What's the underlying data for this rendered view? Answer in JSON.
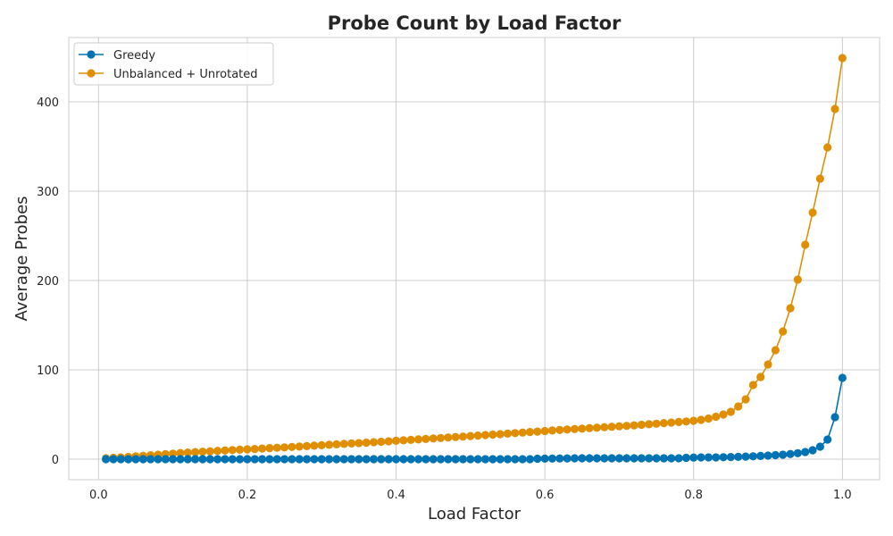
{
  "chart_data": {
    "type": "line",
    "title": "Probe Count by Load Factor",
    "xlabel": "Load Factor",
    "ylabel": "Average Probes",
    "xlim": [
      -0.04,
      1.05
    ],
    "ylim": [
      -23,
      472
    ],
    "xticks": [
      0.0,
      0.2,
      0.4,
      0.6,
      0.8,
      1.0
    ],
    "xtick_labels": [
      "0.0",
      "0.2",
      "0.4",
      "0.6",
      "0.8",
      "1.0"
    ],
    "yticks": [
      0,
      100,
      200,
      300,
      400
    ],
    "ytick_labels": [
      "0",
      "100",
      "200",
      "300",
      "400"
    ],
    "grid": true,
    "legend_position": "top-left",
    "x": [
      0.01,
      0.02,
      0.03,
      0.04,
      0.05,
      0.06,
      0.07,
      0.08,
      0.09,
      0.1,
      0.11,
      0.12,
      0.13,
      0.14,
      0.15,
      0.16,
      0.17,
      0.18,
      0.19,
      0.2,
      0.21,
      0.22,
      0.23,
      0.24,
      0.25,
      0.26,
      0.27,
      0.28,
      0.29,
      0.3,
      0.31,
      0.32,
      0.33,
      0.34,
      0.35,
      0.36,
      0.37,
      0.38,
      0.39,
      0.4,
      0.41,
      0.42,
      0.43,
      0.44,
      0.45,
      0.46,
      0.47,
      0.48,
      0.49,
      0.5,
      0.51,
      0.52,
      0.53,
      0.54,
      0.55,
      0.56,
      0.57,
      0.58,
      0.59,
      0.6,
      0.61,
      0.62,
      0.63,
      0.64,
      0.65,
      0.66,
      0.67,
      0.68,
      0.69,
      0.7,
      0.71,
      0.72,
      0.73,
      0.74,
      0.75,
      0.76,
      0.77,
      0.78,
      0.79,
      0.8,
      0.81,
      0.82,
      0.83,
      0.84,
      0.85,
      0.86,
      0.87,
      0.88,
      0.89,
      0.9,
      0.91,
      0.92,
      0.93,
      0.94,
      0.95,
      0.96,
      0.97,
      0.98,
      0.99,
      1.0
    ],
    "series": [
      {
        "name": "Greedy",
        "color": "#0173b2",
        "values": [
          0.0,
          0.0,
          0.0,
          0.0,
          0.0,
          0.0,
          0.0,
          0.0,
          0.0,
          0.0,
          0.0,
          0.0,
          0.0,
          0.0,
          0.0,
          0.0,
          0.0,
          0.0,
          0.0,
          0.0,
          0.0,
          0.0,
          0.0,
          0.0,
          0.0,
          0.0,
          0.0,
          0.0,
          0.0,
          0.0,
          0.0,
          0.0,
          0.0,
          0.0,
          0.0,
          0.0,
          0.0,
          0.0,
          0.0,
          0.0,
          0.0,
          0.0,
          0.0,
          0.0,
          0.0,
          0.0,
          0.0,
          0.0,
          0.0,
          0.0,
          0.0,
          0.0,
          0.0,
          0.0,
          0.0,
          0.0,
          0.0,
          0.0,
          0.5,
          0.6,
          0.7,
          0.8,
          0.9,
          1.0,
          1.0,
          1.0,
          1.0,
          1.0,
          1.0,
          1.0,
          1.0,
          1.0,
          1.0,
          1.0,
          1.0,
          1.0,
          1.0,
          1.0,
          1.5,
          1.8,
          2.0,
          2.0,
          2.0,
          2.2,
          2.4,
          2.6,
          2.9,
          3.2,
          3.6,
          4.0,
          4.5,
          5.0,
          5.8,
          6.7,
          8.0,
          10.0,
          14.0,
          22.0,
          47.0,
          91.0
        ]
      },
      {
        "name": "Unbalanced + Unrotated",
        "color": "#de8f05",
        "values": [
          1.0,
          1.5,
          2.0,
          2.5,
          3.2,
          3.8,
          4.4,
          5.0,
          5.6,
          6.2,
          6.9,
          7.4,
          7.9,
          8.4,
          8.8,
          9.3,
          9.8,
          10.2,
          10.6,
          11.0,
          11.4,
          11.9,
          12.4,
          12.8,
          13.2,
          13.7,
          14.1,
          14.6,
          15.1,
          15.6,
          16.1,
          16.6,
          17.1,
          17.6,
          18.0,
          18.5,
          19.0,
          19.5,
          20.0,
          20.6,
          21.1,
          21.6,
          22.1,
          22.6,
          23.2,
          23.7,
          24.3,
          24.8,
          25.3,
          25.9,
          26.4,
          27.0,
          27.5,
          28.0,
          28.6,
          29.2,
          29.8,
          30.4,
          30.9,
          31.5,
          32.1,
          32.7,
          33.2,
          33.7,
          34.2,
          34.8,
          35.3,
          35.8,
          36.3,
          36.8,
          37.3,
          37.9,
          38.5,
          39.1,
          39.7,
          40.4,
          41.0,
          41.6,
          42.2,
          43.0,
          44.0,
          45.5,
          47.5,
          50.0,
          53.0,
          59.0,
          67.0,
          83.0,
          92.0,
          106.0,
          122.0,
          143.0,
          169.0,
          201.0,
          240.0,
          276.0,
          314.0,
          349.0,
          392.0,
          449.0
        ]
      }
    ]
  }
}
